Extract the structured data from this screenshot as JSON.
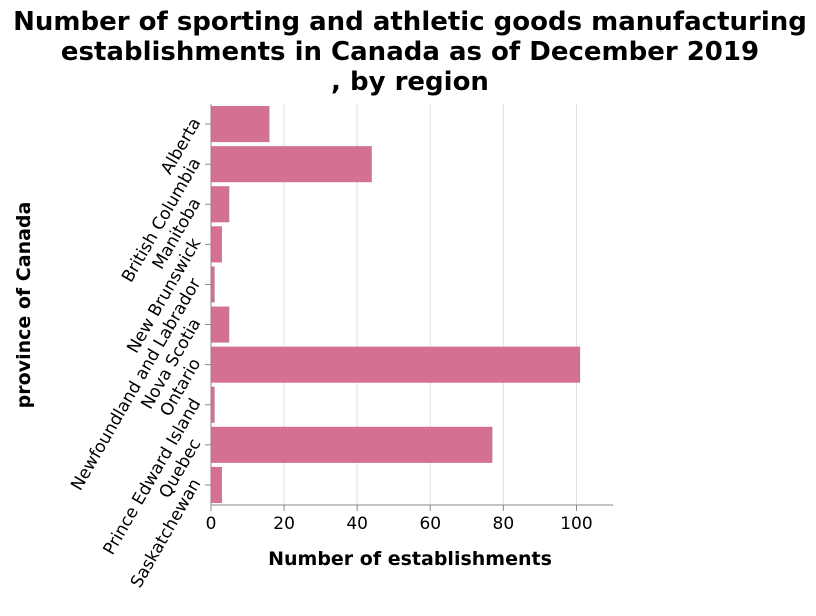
{
  "chart_data": {
    "type": "bar",
    "orientation": "horizontal",
    "title_lines": [
      "Number of sporting and athletic goods manufacturing",
      "establishments in Canada as of December 2019",
      ", by region"
    ],
    "xlabel": "Number of establishments",
    "ylabel": "province of Canada",
    "categories": [
      "Alberta",
      "British Columbia",
      "Manitoba",
      "New Brunswick",
      "Newfoundland and Labrador",
      "Nova Scotia",
      "Ontario",
      "Prince Edward Island",
      "Quebec",
      "Saskatchewan"
    ],
    "values": [
      16,
      44,
      5,
      3,
      1,
      5,
      101,
      1,
      77,
      3
    ],
    "xlim": [
      0,
      110
    ],
    "xticks": [
      0,
      20,
      40,
      60,
      80,
      100
    ],
    "grid": true,
    "bar_color": "#d47193",
    "grid_color": "#dddddd",
    "axis_color": "#888888"
  }
}
